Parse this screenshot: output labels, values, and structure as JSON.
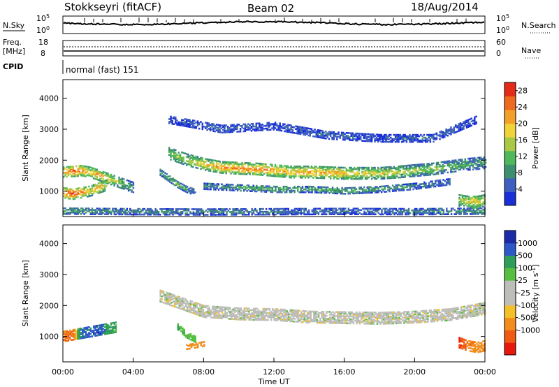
{
  "header": {
    "station": "Stokkseyri (fitACF)",
    "beam": "Beam 02",
    "date": "18/Aug/2014"
  },
  "strips": {
    "nsky": {
      "label": "N.Sky",
      "ticks": [
        "10^5",
        "10^0"
      ]
    },
    "nsearch": {
      "label": "N.Search",
      "ticks": [
        "10^5",
        "10^0"
      ]
    },
    "freq": {
      "label_top": "Freq.",
      "label_unit": "[MHz]",
      "ticks": [
        "18",
        "8"
      ]
    },
    "nave": {
      "label": "Nave",
      "ticks": [
        "60",
        "0"
      ]
    },
    "cpid": {
      "label": "CPID",
      "value": "normal (fast) 151"
    }
  },
  "colors": {
    "power": [
      "#1a2fd8",
      "#3f5fc0",
      "#3d8f6f",
      "#4fb85a",
      "#a9c846",
      "#f0d23a",
      "#f2a02a",
      "#ee6a1e",
      "#e42a18"
    ],
    "velocity": [
      "#e8180f",
      "#ef5a15",
      "#f28c1a",
      "#f4c02a",
      "#bdbdb9",
      "#bdbdb9",
      "#57bf3f",
      "#2f9d5a",
      "#2c58c8",
      "#1c2aa8"
    ],
    "line": "#000000"
  },
  "chart_data": [
    {
      "type": "heatmap",
      "panel": "power",
      "ylabel": "Slant Range [km]",
      "xlabel": "",
      "ylim": [
        180,
        4600
      ],
      "yticks": [
        1000,
        2000,
        3000,
        4000
      ],
      "colorbar": {
        "label": "Power [dB]",
        "ticks": [
          4,
          8,
          12,
          16,
          20,
          24,
          28
        ],
        "range": [
          0,
          30
        ]
      },
      "features": [
        {
          "name": "echo-band-early",
          "t": [
            0.0,
            0.5,
            1.0,
            1.5,
            2.0,
            2.5,
            3.0,
            3.5,
            4.0
          ],
          "range_km": [
            1600,
            1620,
            1650,
            1600,
            1500,
            1400,
            1300,
            1200,
            1100
          ],
          "width_km": 320,
          "power_db": [
            22,
            28,
            26,
            20,
            24,
            20,
            16,
            12,
            8
          ]
        },
        {
          "name": "echo-near-range",
          "t": [
            0.0,
            0.5,
            1.0,
            1.5,
            2.0,
            2.5
          ],
          "range_km": [
            950,
            900,
            950,
            1000,
            1100,
            1200
          ],
          "width_km": 350,
          "power_db": [
            26,
            28,
            24,
            18,
            22,
            16
          ]
        },
        {
          "name": "echo-band-main",
          "t": [
            6.0,
            7.0,
            8.0,
            9.0,
            10.0,
            11.0,
            12.0,
            13.0,
            14.0,
            15.0,
            16.0,
            17.0,
            18.0,
            19.0,
            20.0,
            21.0,
            22.0,
            23.0,
            24.0
          ],
          "range_km": [
            2200,
            2000,
            1850,
            1750,
            1720,
            1700,
            1650,
            1600,
            1600,
            1580,
            1560,
            1560,
            1560,
            1600,
            1650,
            1700,
            1780,
            1850,
            1900
          ],
          "width_km": 360,
          "power_db": [
            14,
            16,
            20,
            22,
            24,
            24,
            22,
            20,
            22,
            22,
            20,
            18,
            18,
            16,
            14,
            14,
            12,
            10,
            10
          ]
        },
        {
          "name": "echo-diagonal",
          "t": [
            5.5,
            6.0,
            6.5,
            7.0,
            7.5
          ],
          "range_km": [
            1600,
            1400,
            1200,
            1050,
            950
          ],
          "width_km": 200,
          "power_db": [
            10,
            12,
            14,
            10,
            8
          ]
        },
        {
          "name": "echo-lower-band",
          "t": [
            8.0,
            10.0,
            12.0,
            14.0,
            16.0,
            18.0,
            20.0,
            22.0
          ],
          "range_km": [
            1150,
            1100,
            1050,
            1050,
            1000,
            1050,
            1150,
            1300
          ],
          "width_km": 200,
          "power_db": [
            8,
            10,
            12,
            10,
            12,
            10,
            8,
            6
          ]
        },
        {
          "name": "echo-upper-scatter",
          "t": [
            6.0,
            9.0,
            12.0,
            15.0,
            18.0,
            21.0,
            23.5
          ],
          "range_km": [
            3300,
            3000,
            3100,
            2800,
            2700,
            2700,
            3300
          ],
          "width_km": 250,
          "power_db": [
            4,
            6,
            4,
            6,
            4,
            6,
            4
          ]
        },
        {
          "name": "echo-ground-scatter",
          "t": [
            0.0,
            4.0,
            8.0,
            12.0,
            16.0,
            20.0,
            24.0
          ],
          "range_km": [
            350,
            330,
            320,
            330,
            340,
            330,
            350
          ],
          "width_km": 200,
          "power_db": [
            10,
            8,
            8,
            8,
            6,
            8,
            10
          ]
        },
        {
          "name": "echo-late-burst",
          "t": [
            22.5,
            23.0,
            23.5,
            24.0
          ],
          "range_km": [
            700,
            650,
            650,
            700
          ],
          "width_km": 400,
          "power_db": [
            14,
            18,
            20,
            16
          ]
        }
      ]
    },
    {
      "type": "heatmap",
      "panel": "velocity",
      "ylabel": "Slant Range [km]",
      "xlabel": "Time UT",
      "xticks": [
        "00:00",
        "04:00",
        "08:00",
        "12:00",
        "16:00",
        "20:00",
        "00:00"
      ],
      "ylim": [
        180,
        4600
      ],
      "yticks": [
        1000,
        2000,
        3000,
        4000
      ],
      "colorbar": {
        "label": "Velocity [m s^-1]",
        "ticks": [
          1000,
          500,
          100,
          25,
          -25,
          -100,
          -500,
          -1000
        ]
      },
      "features": [
        {
          "name": "flow-near-range",
          "t": [
            0.0,
            0.5,
            1.0,
            1.5,
            2.0,
            2.5,
            3.0
          ],
          "range_km": [
            1000,
            1050,
            1100,
            1150,
            1200,
            1250,
            1300
          ],
          "width_km": 350,
          "velocity_ms": [
            -400,
            -600,
            600,
            700,
            800,
            300,
            100
          ]
        },
        {
          "name": "flow-ground-main",
          "t": [
            5.5,
            7.0,
            8.0,
            10.0,
            12.0,
            14.0,
            16.0,
            18.0,
            20.0,
            22.0,
            24.0
          ],
          "range_km": [
            2300,
            2000,
            1800,
            1720,
            1700,
            1620,
            1600,
            1580,
            1620,
            1700,
            1900
          ],
          "width_km": 380,
          "velocity_ms": [
            0,
            0,
            0,
            0,
            0,
            0,
            0,
            0,
            0,
            0,
            0
          ]
        },
        {
          "name": "flow-diagonal",
          "t": [
            6.5,
            7.0,
            7.5
          ],
          "range_km": [
            1300,
            1050,
            900
          ],
          "width_km": 200,
          "velocity_ms": [
            120,
            80,
            60
          ]
        },
        {
          "name": "flow-orange-patch",
          "t": [
            7.0,
            7.5,
            8.0
          ],
          "range_km": [
            650,
            700,
            750
          ],
          "width_km": 150,
          "velocity_ms": [
            -150,
            -200,
            -180
          ]
        },
        {
          "name": "flow-late-red",
          "t": [
            22.5,
            23.0,
            23.5,
            24.0
          ],
          "range_km": [
            800,
            700,
            650,
            700
          ],
          "width_km": 350,
          "velocity_ms": [
            -800,
            -500,
            -300,
            -400
          ]
        }
      ]
    }
  ]
}
